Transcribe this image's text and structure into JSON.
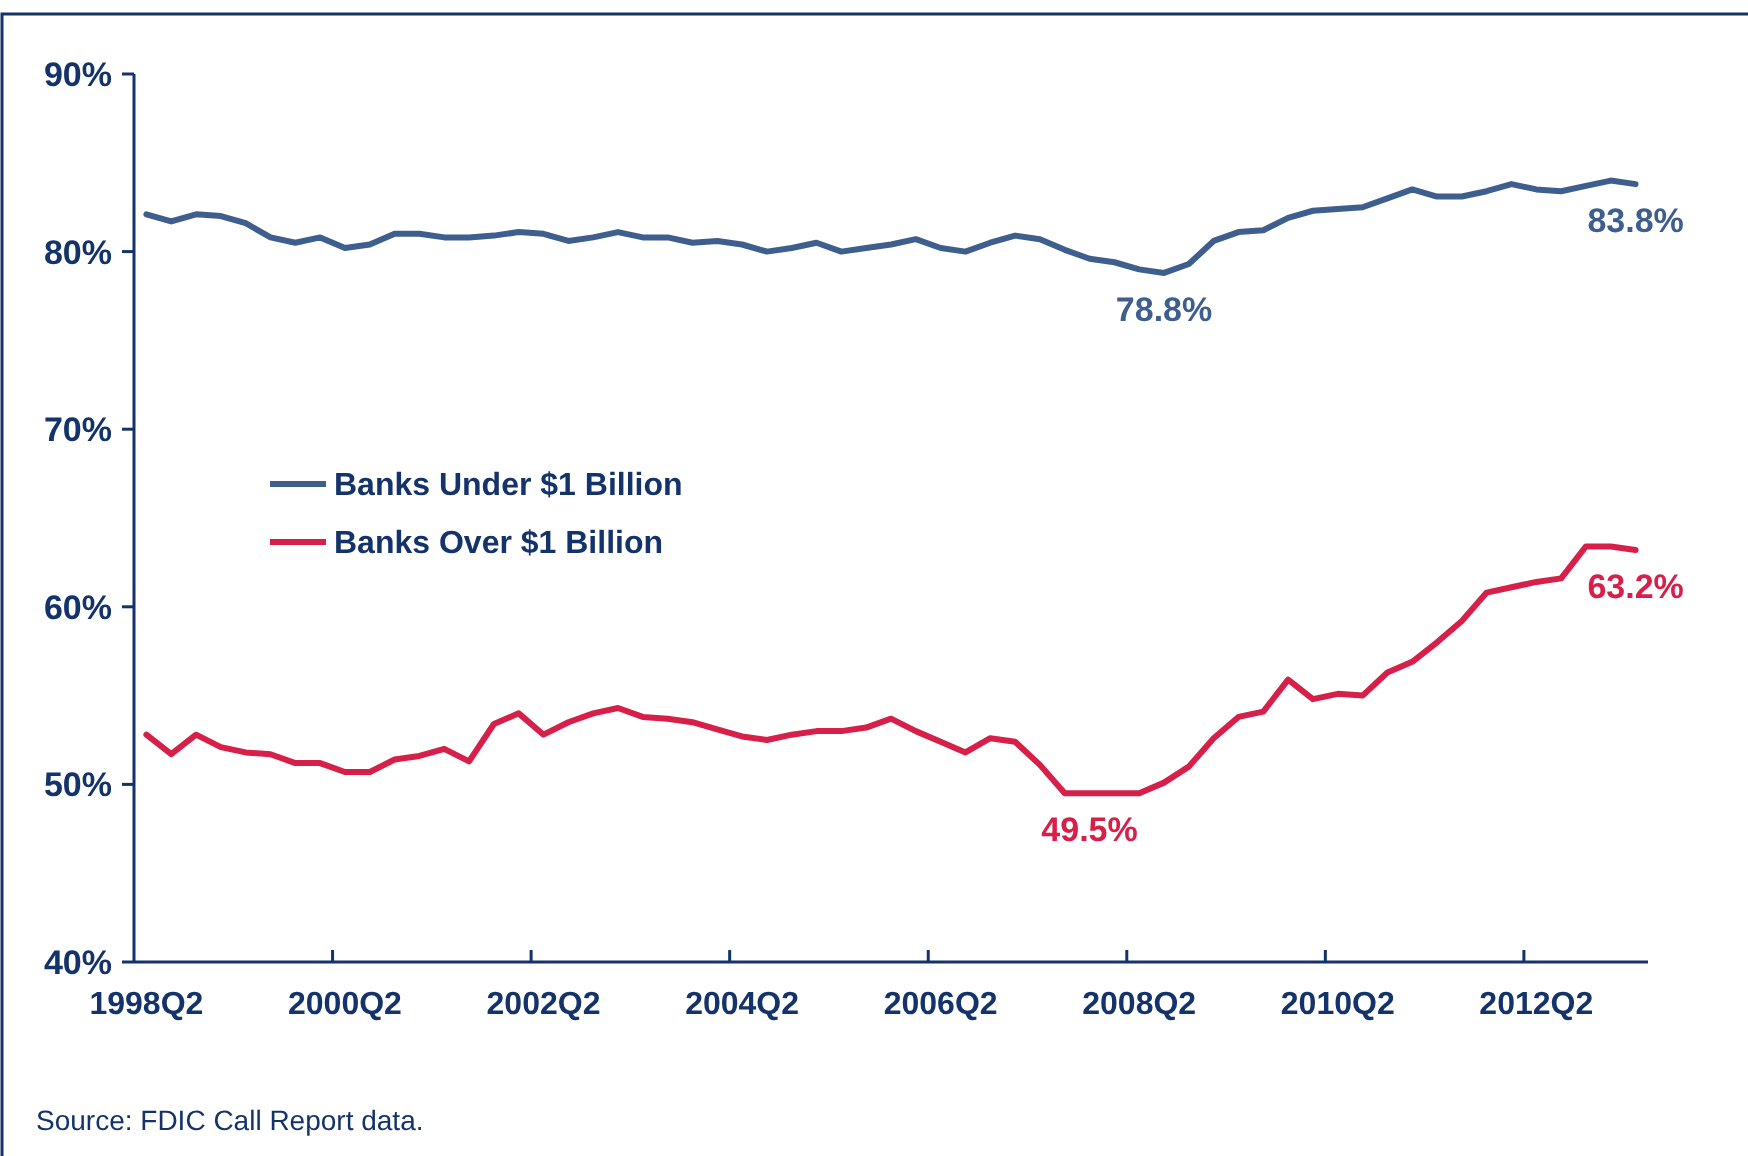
{
  "chart_data": {
    "type": "line",
    "categories": [
      "1998Q2",
      null,
      null,
      null,
      null,
      null,
      null,
      null,
      "2000Q2",
      null,
      null,
      null,
      null,
      null,
      null,
      null,
      "2002Q2",
      null,
      null,
      null,
      null,
      null,
      null,
      null,
      "2004Q2",
      null,
      null,
      null,
      null,
      null,
      null,
      null,
      "2006Q2",
      null,
      null,
      null,
      null,
      null,
      null,
      null,
      "2008Q2",
      null,
      null,
      null,
      null,
      null,
      null,
      null,
      "2010Q2",
      null,
      null,
      null,
      null,
      null,
      null,
      null,
      "2012Q2",
      null,
      null,
      null,
      null
    ],
    "series": [
      {
        "name": "Banks Under $1 Billion",
        "color": "#3e5f8e",
        "values": [
          82.1,
          81.7,
          82.1,
          82.0,
          81.6,
          80.8,
          80.5,
          80.8,
          80.2,
          80.4,
          81.0,
          81.0,
          80.8,
          80.8,
          80.9,
          81.1,
          81.0,
          80.6,
          80.8,
          81.1,
          80.8,
          80.8,
          80.5,
          80.6,
          80.4,
          80.0,
          80.2,
          80.5,
          80.0,
          80.2,
          80.4,
          80.7,
          80.2,
          80.0,
          80.5,
          80.9,
          80.7,
          80.1,
          79.6,
          79.4,
          79.0,
          78.8,
          79.3,
          80.6,
          81.1,
          81.2,
          81.9,
          82.3,
          82.4,
          82.5,
          83.0,
          83.5,
          83.1,
          83.1,
          83.4,
          83.8,
          83.5,
          83.4,
          83.7,
          84.0,
          83.8
        ],
        "value_labels": [
          null,
          null,
          null,
          null,
          null,
          null,
          null,
          null,
          null,
          null,
          null,
          null,
          null,
          null,
          null,
          null,
          null,
          null,
          null,
          null,
          null,
          null,
          null,
          null,
          null,
          null,
          null,
          null,
          null,
          null,
          null,
          null,
          null,
          null,
          null,
          null,
          null,
          null,
          null,
          null,
          null,
          "78.8%",
          null,
          null,
          null,
          null,
          null,
          null,
          null,
          null,
          null,
          null,
          null,
          null,
          null,
          null,
          null,
          null,
          null,
          null,
          "83.8%"
        ]
      },
      {
        "name": "Banks Over $1 Billion",
        "color": "#d6204a",
        "values": [
          52.8,
          51.7,
          52.8,
          52.1,
          51.8,
          51.7,
          51.2,
          51.2,
          50.7,
          50.7,
          51.4,
          51.6,
          52.0,
          51.3,
          53.4,
          54.0,
          52.8,
          53.5,
          54.0,
          54.3,
          53.8,
          53.7,
          53.5,
          53.1,
          52.7,
          52.5,
          52.8,
          53.0,
          53.0,
          53.2,
          53.7,
          53.0,
          52.4,
          51.8,
          52.6,
          52.4,
          51.1,
          49.5,
          49.5,
          49.5,
          49.5,
          50.1,
          51.0,
          52.6,
          53.8,
          54.1,
          55.9,
          54.8,
          55.1,
          55.0,
          56.3,
          56.9,
          58.0,
          59.2,
          60.8,
          61.1,
          61.4,
          61.6,
          63.4,
          63.4,
          63.2
        ],
        "value_labels": [
          null,
          null,
          null,
          null,
          null,
          null,
          null,
          null,
          null,
          null,
          null,
          null,
          null,
          null,
          null,
          null,
          null,
          null,
          null,
          null,
          null,
          null,
          null,
          null,
          null,
          null,
          null,
          null,
          null,
          null,
          null,
          null,
          null,
          null,
          null,
          null,
          null,
          null,
          "49.5%",
          null,
          null,
          null,
          null,
          null,
          null,
          null,
          null,
          null,
          null,
          null,
          null,
          null,
          null,
          null,
          null,
          null,
          null,
          null,
          null,
          null,
          "63.2%"
        ]
      }
    ],
    "ylim": [
      40,
      90
    ],
    "yticks": [
      {
        "value": 40,
        "label": "40%"
      },
      {
        "value": 50,
        "label": "50%"
      },
      {
        "value": 60,
        "label": "60%"
      },
      {
        "value": 70,
        "label": "70%"
      },
      {
        "value": 80,
        "label": "80%"
      },
      {
        "value": 90,
        "label": "90%"
      }
    ],
    "legend": "left",
    "grid": false,
    "annotations": [
      "Source: FDIC Call Report data."
    ]
  }
}
